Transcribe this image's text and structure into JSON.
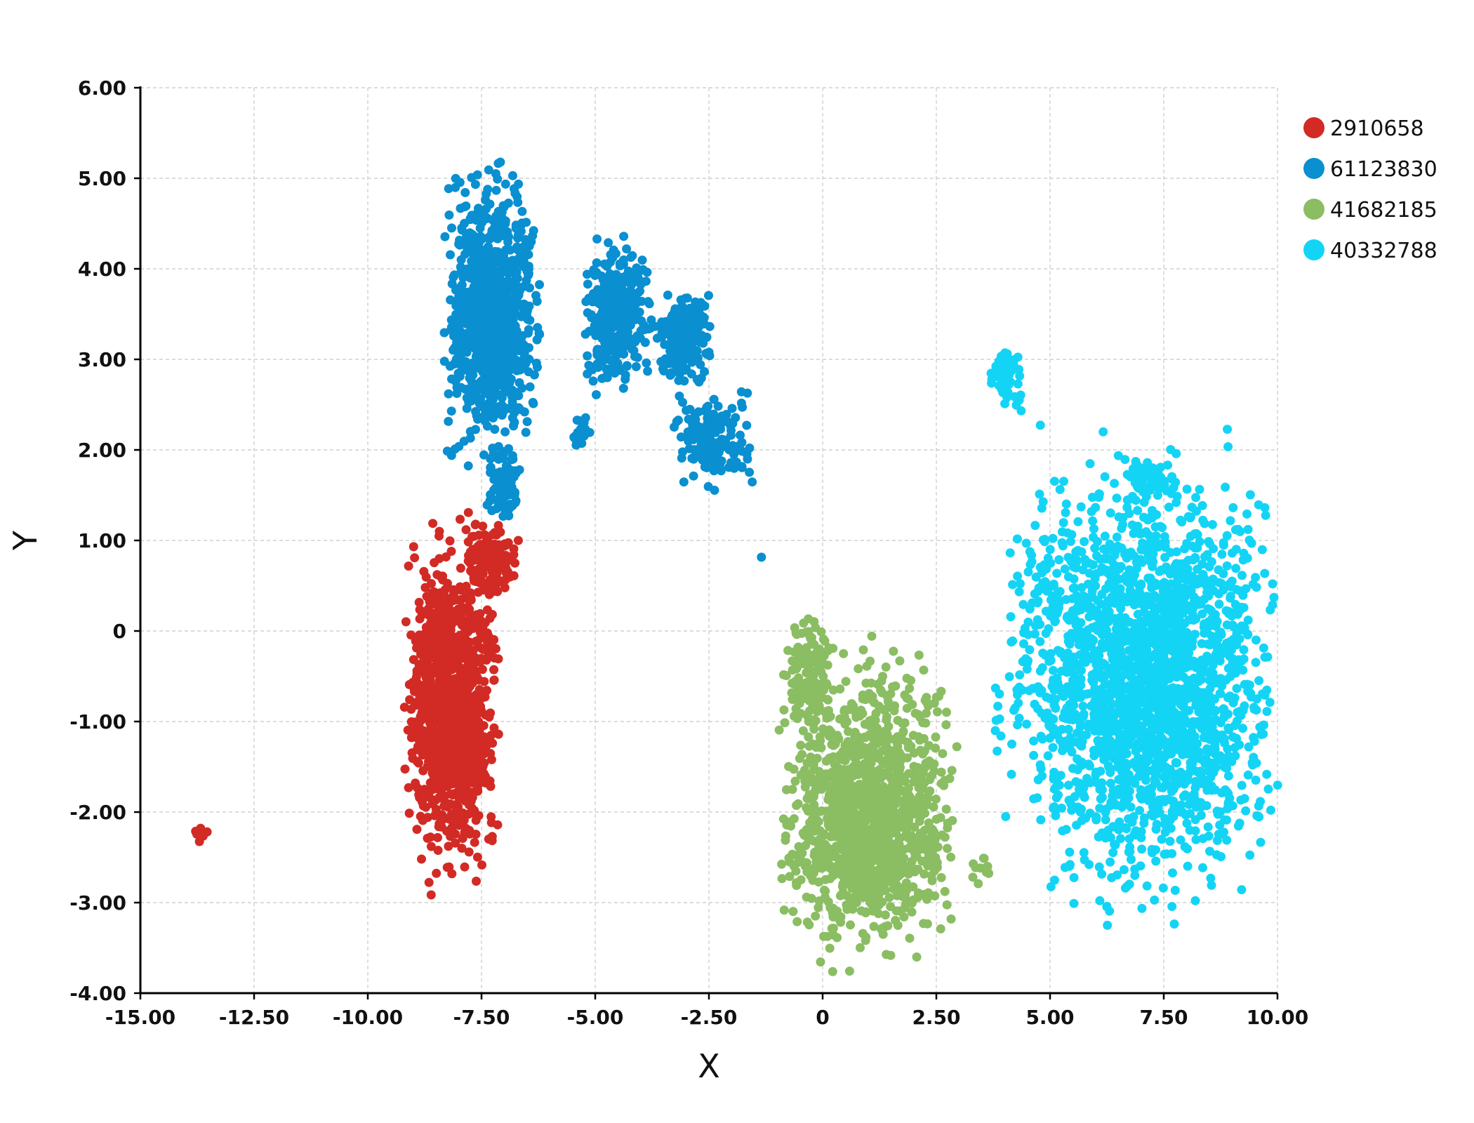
{
  "chart_data": {
    "type": "scatter",
    "title": "",
    "xlabel": "X",
    "ylabel": "Y",
    "xlim": [
      -15,
      10
    ],
    "ylim": [
      -4,
      6
    ],
    "x_ticks": [
      -15,
      -12.5,
      -10,
      -7.5,
      -5,
      -2.5,
      0,
      2.5,
      5,
      7.5,
      10
    ],
    "x_tick_labels": [
      "-15.00",
      "-12.50",
      "-10.00",
      "-7.50",
      "-5.00",
      "-2.50",
      "0",
      "2.50",
      "5.00",
      "7.50",
      "10.00"
    ],
    "y_ticks": [
      -4,
      -3,
      -2,
      -1,
      0,
      1,
      2,
      3,
      4,
      5,
      6
    ],
    "y_tick_labels": [
      "-4.00",
      "-3.00",
      "-2.00",
      "-1.00",
      "0",
      "1.00",
      "2.00",
      "3.00",
      "4.00",
      "5.00",
      "6.00"
    ],
    "grid": true,
    "legend_position": "top-right",
    "series": [
      {
        "name": "2910658",
        "color": "#d22a24",
        "regions": [
          {
            "x": [
              -9.2,
              -7.1
            ],
            "y": [
              -3.1,
              1.5
            ],
            "n": 1100
          },
          {
            "x": [
              -8.0,
              -6.6
            ],
            "y": [
              0.3,
              1.3
            ],
            "n": 120
          },
          {
            "x": [
              -13.8,
              -13.5
            ],
            "y": [
              -2.4,
              -2.1
            ],
            "n": 10
          }
        ]
      },
      {
        "name": "61123830",
        "color": "#0a8fd0",
        "regions": [
          {
            "x": [
              -8.4,
              -6.2
            ],
            "y": [
              1.6,
              5.4
            ],
            "n": 900
          },
          {
            "x": [
              -7.4,
              -6.6
            ],
            "y": [
              1.0,
              2.2
            ],
            "n": 90
          },
          {
            "x": [
              -5.3,
              -3.7
            ],
            "y": [
              2.5,
              4.5
            ],
            "n": 320
          },
          {
            "x": [
              -3.7,
              -2.4
            ],
            "y": [
              2.6,
              3.9
            ],
            "n": 200
          },
          {
            "x": [
              -3.4,
              -1.5
            ],
            "y": [
              1.4,
              2.8
            ],
            "n": 160
          },
          {
            "x": [
              -5.5,
              -5.1
            ],
            "y": [
              1.9,
              2.5
            ],
            "n": 20
          },
          {
            "x": [
              -1.4,
              -1.2
            ],
            "y": [
              0.7,
              0.9
            ],
            "n": 1
          }
        ]
      },
      {
        "name": "41682185",
        "color": "#8bbd63",
        "regions": [
          {
            "x": [
              -1.0,
              3.0
            ],
            "y": [
              -4.0,
              0.0
            ],
            "n": 1300
          },
          {
            "x": [
              -0.8,
              0.3
            ],
            "y": [
              -1.2,
              0.3
            ],
            "n": 120
          },
          {
            "x": [
              3.2,
              3.8
            ],
            "y": [
              -2.9,
              -2.4
            ],
            "n": 12
          }
        ]
      },
      {
        "name": "40332788",
        "color": "#14d4f5",
        "regions": [
          {
            "x": [
              4.0,
              10.1
            ],
            "y": [
              -3.4,
              2.4
            ],
            "n": 2200
          },
          {
            "x": [
              3.6,
              4.4
            ],
            "y": [
              2.3,
              3.3
            ],
            "n": 60
          },
          {
            "x": [
              6.6,
              7.8
            ],
            "y": [
              1.4,
              2.0
            ],
            "n": 40
          },
          {
            "x": [
              3.7,
              4.0
            ],
            "y": [
              -1.7,
              -0.4
            ],
            "n": 8
          }
        ]
      }
    ]
  }
}
